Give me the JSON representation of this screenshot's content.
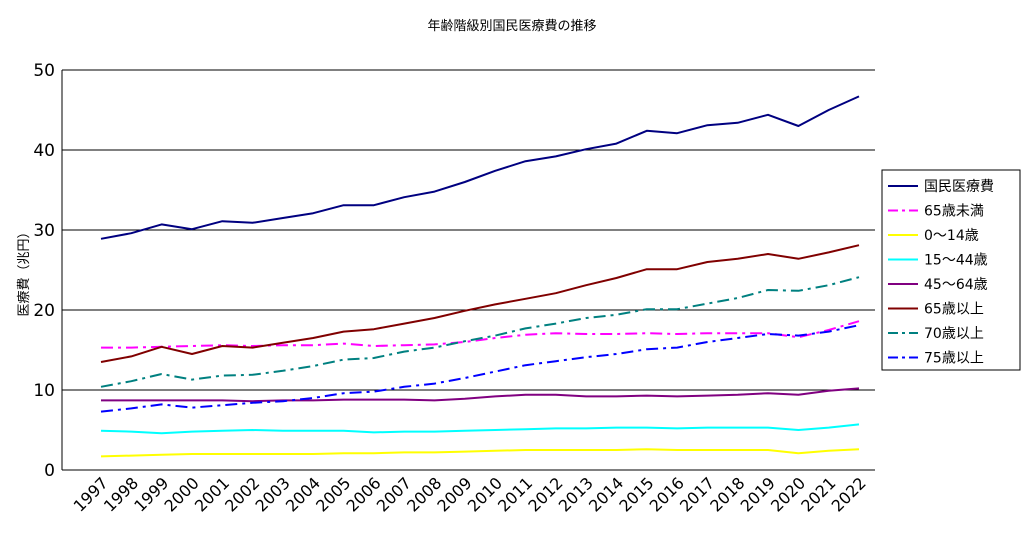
{
  "chart_data": {
    "type": "line",
    "title": "年齢階級別国民医療費の推移",
    "xlabel": "",
    "ylabel": "医療費（兆円）",
    "ylim": [
      0,
      50
    ],
    "yticks": [
      0,
      10,
      20,
      30,
      40,
      50
    ],
    "grid": true,
    "legend_position": "right",
    "x": [
      "1997",
      "1998",
      "1999",
      "2000",
      "2001",
      "2002",
      "2003",
      "2004",
      "2005",
      "2006",
      "2007",
      "2008",
      "2009",
      "2010",
      "2011",
      "2012",
      "2013",
      "2014",
      "2015",
      "2016",
      "2017",
      "2018",
      "2019",
      "2020",
      "2021",
      "2022"
    ],
    "series": [
      {
        "name": "国民医療費",
        "color": "#000080",
        "dash": "solid",
        "values": [
          28.9,
          29.6,
          30.7,
          30.1,
          31.1,
          30.9,
          31.5,
          32.1,
          33.1,
          33.1,
          34.1,
          34.8,
          36.0,
          37.4,
          38.6,
          39.2,
          40.1,
          40.8,
          42.4,
          42.1,
          43.1,
          43.4,
          44.4,
          43.0,
          45.0,
          46.7
        ]
      },
      {
        "name": "65歳未満",
        "color": "#FF00FF",
        "dash": "dashdot",
        "values": [
          15.3,
          15.3,
          15.4,
          15.5,
          15.6,
          15.5,
          15.6,
          15.6,
          15.8,
          15.5,
          15.6,
          15.7,
          16.0,
          16.5,
          16.9,
          17.1,
          17.0,
          17.0,
          17.1,
          17.0,
          17.1,
          17.1,
          17.1,
          16.6,
          17.5,
          18.6
        ]
      },
      {
        "name": "0～14歳",
        "color": "#FFFF00",
        "dash": "solid",
        "values": [
          1.7,
          1.8,
          1.9,
          2.0,
          2.0,
          2.0,
          2.0,
          2.0,
          2.1,
          2.1,
          2.2,
          2.2,
          2.3,
          2.4,
          2.5,
          2.5,
          2.5,
          2.5,
          2.6,
          2.5,
          2.5,
          2.5,
          2.5,
          2.1,
          2.4,
          2.6
        ]
      },
      {
        "name": "15～44歳",
        "color": "#00FFFF",
        "dash": "solid",
        "values": [
          4.9,
          4.8,
          4.6,
          4.8,
          4.9,
          5.0,
          4.9,
          4.9,
          4.9,
          4.7,
          4.8,
          4.8,
          4.9,
          5.0,
          5.1,
          5.2,
          5.2,
          5.3,
          5.3,
          5.2,
          5.3,
          5.3,
          5.3,
          5.0,
          5.3,
          5.7
        ]
      },
      {
        "name": "45～64歳",
        "color": "#800080",
        "dash": "solid",
        "values": [
          8.7,
          8.7,
          8.7,
          8.7,
          8.7,
          8.6,
          8.7,
          8.7,
          8.8,
          8.8,
          8.8,
          8.7,
          8.9,
          9.2,
          9.4,
          9.4,
          9.2,
          9.2,
          9.3,
          9.2,
          9.3,
          9.4,
          9.6,
          9.4,
          9.9,
          10.2
        ]
      },
      {
        "name": "65歳以上",
        "color": "#800000",
        "dash": "solid",
        "values": [
          13.5,
          14.2,
          15.4,
          14.5,
          15.5,
          15.3,
          15.9,
          16.5,
          17.3,
          17.6,
          18.3,
          19.0,
          19.9,
          20.7,
          21.4,
          22.1,
          23.1,
          24.0,
          25.1,
          25.1,
          26.0,
          26.4,
          27.0,
          26.4,
          27.2,
          28.1
        ]
      },
      {
        "name": "70歳以上",
        "color": "#008080",
        "dash": "dashdot",
        "values": [
          10.4,
          11.1,
          12.0,
          11.3,
          11.8,
          11.9,
          12.4,
          13.0,
          13.8,
          14.0,
          14.8,
          15.3,
          16.1,
          16.8,
          17.7,
          18.3,
          19.0,
          19.4,
          20.1,
          20.1,
          20.8,
          21.5,
          22.5,
          22.4,
          23.1,
          24.1
        ]
      },
      {
        "name": "75歳以上",
        "color": "#0000FF",
        "dash": "dashdot",
        "values": [
          7.3,
          7.7,
          8.2,
          7.8,
          8.1,
          8.4,
          8.6,
          9.0,
          9.6,
          9.8,
          10.4,
          10.8,
          11.5,
          12.3,
          13.1,
          13.6,
          14.1,
          14.5,
          15.1,
          15.3,
          16.0,
          16.5,
          17.0,
          16.8,
          17.3,
          18.1
        ]
      }
    ]
  }
}
